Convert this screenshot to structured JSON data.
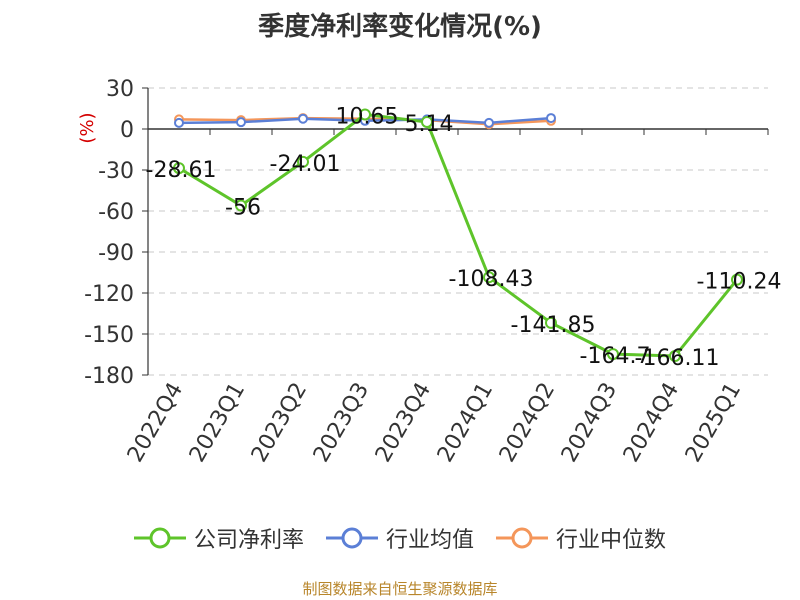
{
  "chart_data": {
    "type": "line",
    "title": "季度净利率变化情况(%)",
    "ylabel": "(%)",
    "xlabel": "",
    "categories": [
      "2022Q4",
      "2023Q1",
      "2023Q2",
      "2023Q3",
      "2023Q4",
      "2024Q1",
      "2024Q2",
      "2024Q3",
      "2024Q4",
      "2025Q1"
    ],
    "ylim": [
      -180,
      30
    ],
    "yticks": [
      30,
      0,
      -30,
      -60,
      -90,
      -120,
      -150,
      -180
    ],
    "grid": true,
    "legend_position": "bottom",
    "series": [
      {
        "name": "公司净利率",
        "color": "#5ec42a",
        "values": [
          -28.61,
          -56,
          -24.01,
          10.65,
          5.14,
          -108.43,
          -141.85,
          -164.7,
          -166.11,
          -110.24
        ],
        "labels": [
          "-28.61",
          "-56",
          "-24.01",
          "10.65",
          "5.14",
          "-108.43",
          "-141.85",
          "-164.7",
          "-166.11",
          "-110.24"
        ]
      },
      {
        "name": "行业均值",
        "color": "#5b7fd6",
        "values": [
          4.5,
          5.0,
          7.5,
          6.0,
          7.0,
          4.5,
          8.0,
          null,
          null,
          null
        ]
      },
      {
        "name": "行业中位数",
        "color": "#f4965a",
        "values": [
          7.0,
          6.5,
          8.0,
          7.5,
          6.5,
          3.5,
          6.0,
          null,
          null,
          null
        ]
      }
    ]
  },
  "footer": {
    "source": "制图数据来自恒生聚源数据库"
  }
}
